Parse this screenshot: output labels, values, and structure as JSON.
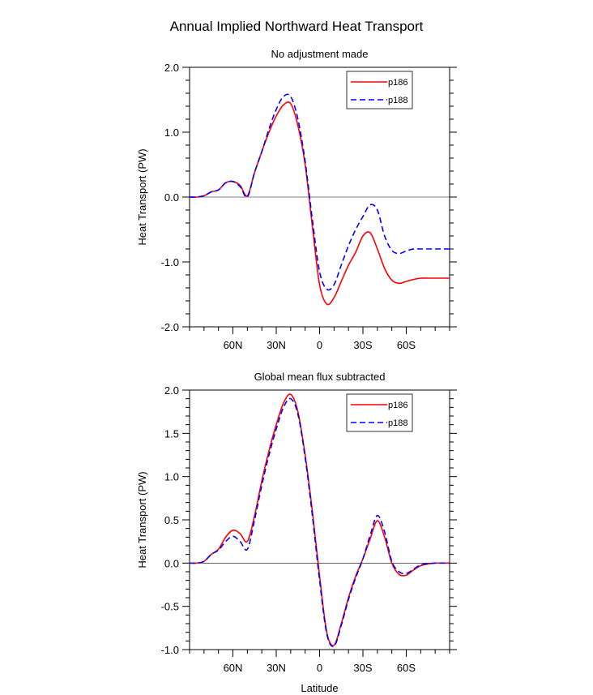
{
  "figure_title": "Annual Implied Northward Heat Transport",
  "chart_data": [
    {
      "type": "line",
      "title": "No adjustment made",
      "xlabel": "",
      "ylabel": "Heat Transport (PW)",
      "xlim": [
        90,
        -90
      ],
      "ylim": [
        -2.0,
        2.0
      ],
      "x_ticks": [
        60,
        30,
        0,
        -30,
        -60
      ],
      "x_tick_labels": [
        "60N",
        "30N",
        "0",
        "30S",
        "60S"
      ],
      "y_ticks": [
        -2.0,
        -1.0,
        0.0,
        1.0,
        2.0
      ],
      "y_tick_labels": [
        "-2.0",
        "-1.0",
        "0.0",
        "1.0",
        "2.0"
      ],
      "zero_line": true,
      "legend": "top-right",
      "x": [
        90,
        85,
        80,
        75,
        70,
        65,
        60,
        55,
        50,
        45,
        40,
        35,
        30,
        25,
        20,
        15,
        10,
        5,
        0,
        -5,
        -10,
        -15,
        -20,
        -25,
        -30,
        -35,
        -40,
        -45,
        -50,
        -55,
        -60,
        -65,
        -70,
        -75,
        -80,
        -85,
        -90
      ],
      "series": [
        {
          "name": "p186",
          "color": "#ff0000",
          "dash": false,
          "values": [
            0.0,
            0.0,
            0.02,
            0.08,
            0.11,
            0.22,
            0.24,
            0.18,
            0.02,
            0.38,
            0.7,
            1.0,
            1.25,
            1.42,
            1.44,
            1.1,
            0.5,
            -0.45,
            -1.35,
            -1.65,
            -1.55,
            -1.3,
            -1.05,
            -0.85,
            -0.6,
            -0.55,
            -0.8,
            -1.1,
            -1.28,
            -1.33,
            -1.3,
            -1.27,
            -1.25,
            -1.25,
            -1.25,
            -1.25,
            -1.25
          ]
        },
        {
          "name": "p188",
          "color": "#0000ff",
          "dash": true,
          "values": [
            0.0,
            0.0,
            0.02,
            0.08,
            0.11,
            0.22,
            0.24,
            0.16,
            0.0,
            0.38,
            0.7,
            1.05,
            1.35,
            1.55,
            1.55,
            1.2,
            0.55,
            -0.35,
            -1.15,
            -1.42,
            -1.35,
            -1.05,
            -0.75,
            -0.5,
            -0.3,
            -0.12,
            -0.2,
            -0.6,
            -0.82,
            -0.87,
            -0.83,
            -0.8,
            -0.8,
            -0.8,
            -0.8,
            -0.8,
            -0.8
          ]
        }
      ]
    },
    {
      "type": "line",
      "title": "Global mean flux subtracted",
      "xlabel": "Latitude",
      "ylabel": "Heat Transport (PW)",
      "xlim": [
        90,
        -90
      ],
      "ylim": [
        -1.0,
        2.0
      ],
      "x_ticks": [
        60,
        30,
        0,
        -30,
        -60
      ],
      "x_tick_labels": [
        "60N",
        "30N",
        "0",
        "30S",
        "60S"
      ],
      "y_ticks": [
        -1.0,
        -0.5,
        0.0,
        0.5,
        1.0,
        1.5,
        2.0
      ],
      "y_tick_labels": [
        "-1.0",
        "-0.5",
        "0.0",
        "0.5",
        "1.0",
        "1.5",
        "2.0"
      ],
      "zero_line": true,
      "legend": "top-right",
      "x": [
        90,
        85,
        80,
        75,
        70,
        65,
        60,
        55,
        50,
        45,
        40,
        35,
        30,
        25,
        20,
        15,
        10,
        5,
        0,
        -5,
        -10,
        -15,
        -20,
        -25,
        -30,
        -35,
        -40,
        -45,
        -50,
        -55,
        -60,
        -65,
        -70,
        -75,
        -80,
        -85,
        -90
      ],
      "series": [
        {
          "name": "p186",
          "color": "#ff0000",
          "dash": false,
          "values": [
            0.0,
            0.0,
            0.02,
            0.1,
            0.16,
            0.3,
            0.38,
            0.34,
            0.25,
            0.55,
            0.95,
            1.3,
            1.6,
            1.85,
            1.95,
            1.75,
            1.25,
            0.6,
            -0.15,
            -0.8,
            -0.95,
            -0.7,
            -0.4,
            -0.15,
            0.05,
            0.28,
            0.49,
            0.3,
            0.0,
            -0.13,
            -0.14,
            -0.08,
            -0.03,
            -0.01,
            0.0,
            0.0,
            0.0
          ]
        },
        {
          "name": "p188",
          "color": "#0000ff",
          "dash": true,
          "values": [
            0.0,
            0.0,
            0.02,
            0.1,
            0.15,
            0.25,
            0.31,
            0.25,
            0.16,
            0.5,
            0.9,
            1.25,
            1.55,
            1.8,
            1.9,
            1.72,
            1.22,
            0.55,
            -0.2,
            -0.82,
            -0.96,
            -0.72,
            -0.42,
            -0.17,
            0.05,
            0.32,
            0.55,
            0.36,
            0.02,
            -0.1,
            -0.12,
            -0.07,
            -0.02,
            -0.01,
            0.0,
            0.0,
            0.0
          ]
        }
      ]
    }
  ]
}
